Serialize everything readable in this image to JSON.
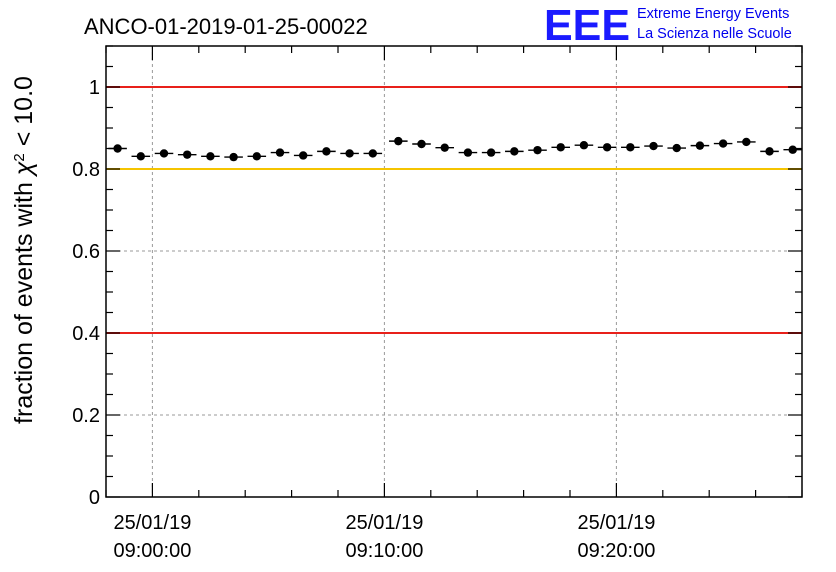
{
  "chart_data": {
    "type": "scatter",
    "title": "ANCO-01-2019-01-25-00022",
    "ylabel_prefix": "fraction of events with ",
    "ylabel_symbol": "χ",
    "ylabel_sup": "2",
    "ylabel_suffix": " < 10.0",
    "xlabel": "",
    "ylim": [
      0,
      1.1
    ],
    "xlim_minutes": [
      -2,
      28
    ],
    "x_ticks": [
      {
        "minute": 0,
        "date": "25/01/19",
        "time": "09:00:00"
      },
      {
        "minute": 10,
        "date": "25/01/19",
        "time": "09:10:00"
      },
      {
        "minute": 20,
        "date": "25/01/19",
        "time": "09:20:00"
      }
    ],
    "y_ticks": [
      {
        "value": 0,
        "label": "0"
      },
      {
        "value": 0.2,
        "label": "0.2"
      },
      {
        "value": 0.4,
        "label": "0.4"
      },
      {
        "value": 0.6,
        "label": "0.6"
      },
      {
        "value": 0.8,
        "label": "0.8"
      },
      {
        "value": 1.0,
        "label": "1"
      }
    ],
    "reference_lines": [
      {
        "value": 1.0,
        "color": "#e8201a"
      },
      {
        "value": 0.8,
        "color": "#f5c400"
      },
      {
        "value": 0.4,
        "color": "#e8201a"
      }
    ],
    "grid": true,
    "bin_width_minutes": 0.8,
    "series": [
      {
        "name": "run",
        "x_minutes": [
          -1.5,
          -0.5,
          0.5,
          1.5,
          2.5,
          3.5,
          4.5,
          5.5,
          6.5,
          7.5,
          8.5,
          9.5,
          10.6,
          11.6,
          12.6,
          13.6,
          14.6,
          15.6,
          16.6,
          17.6,
          18.6,
          19.6,
          20.6,
          21.6,
          22.6,
          23.6,
          24.6,
          25.6,
          26.6,
          27.6
        ],
        "y": [
          0.85,
          0.831,
          0.838,
          0.835,
          0.831,
          0.829,
          0.831,
          0.84,
          0.833,
          0.843,
          0.838,
          0.838,
          0.868,
          0.861,
          0.852,
          0.84,
          0.84,
          0.843,
          0.846,
          0.853,
          0.858,
          0.853,
          0.853,
          0.856,
          0.851,
          0.857,
          0.862,
          0.866,
          0.843,
          0.847
        ]
      }
    ]
  },
  "logo": {
    "mark": "EEE",
    "line1": "Extreme Energy Events",
    "line2": "La Scienza nelle Scuole",
    "color": "#1a1aff"
  }
}
